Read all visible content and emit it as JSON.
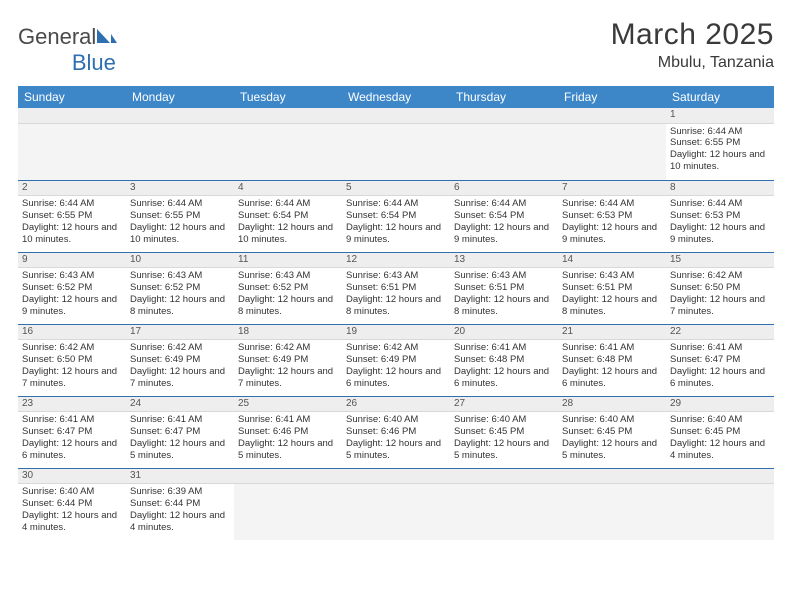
{
  "brand": {
    "name_a": "General",
    "name_b": "Blue"
  },
  "title": "March 2025",
  "location": "Mbulu, Tanzania",
  "colors": {
    "header_bg": "#3d87c9",
    "header_fg": "#ffffff",
    "rule": "#2f6fb0",
    "daynum_bg": "#eeeeee",
    "text": "#333333"
  },
  "weekdays": [
    "Sunday",
    "Monday",
    "Tuesday",
    "Wednesday",
    "Thursday",
    "Friday",
    "Saturday"
  ],
  "weeks": [
    [
      null,
      null,
      null,
      null,
      null,
      null,
      {
        "n": "1",
        "sr": "6:44 AM",
        "ss": "6:55 PM",
        "dl": "12 hours and 10 minutes."
      }
    ],
    [
      {
        "n": "2",
        "sr": "6:44 AM",
        "ss": "6:55 PM",
        "dl": "12 hours and 10 minutes."
      },
      {
        "n": "3",
        "sr": "6:44 AM",
        "ss": "6:55 PM",
        "dl": "12 hours and 10 minutes."
      },
      {
        "n": "4",
        "sr": "6:44 AM",
        "ss": "6:54 PM",
        "dl": "12 hours and 10 minutes."
      },
      {
        "n": "5",
        "sr": "6:44 AM",
        "ss": "6:54 PM",
        "dl": "12 hours and 9 minutes."
      },
      {
        "n": "6",
        "sr": "6:44 AM",
        "ss": "6:54 PM",
        "dl": "12 hours and 9 minutes."
      },
      {
        "n": "7",
        "sr": "6:44 AM",
        "ss": "6:53 PM",
        "dl": "12 hours and 9 minutes."
      },
      {
        "n": "8",
        "sr": "6:44 AM",
        "ss": "6:53 PM",
        "dl": "12 hours and 9 minutes."
      }
    ],
    [
      {
        "n": "9",
        "sr": "6:43 AM",
        "ss": "6:52 PM",
        "dl": "12 hours and 9 minutes."
      },
      {
        "n": "10",
        "sr": "6:43 AM",
        "ss": "6:52 PM",
        "dl": "12 hours and 8 minutes."
      },
      {
        "n": "11",
        "sr": "6:43 AM",
        "ss": "6:52 PM",
        "dl": "12 hours and 8 minutes."
      },
      {
        "n": "12",
        "sr": "6:43 AM",
        "ss": "6:51 PM",
        "dl": "12 hours and 8 minutes."
      },
      {
        "n": "13",
        "sr": "6:43 AM",
        "ss": "6:51 PM",
        "dl": "12 hours and 8 minutes."
      },
      {
        "n": "14",
        "sr": "6:43 AM",
        "ss": "6:51 PM",
        "dl": "12 hours and 8 minutes."
      },
      {
        "n": "15",
        "sr": "6:42 AM",
        "ss": "6:50 PM",
        "dl": "12 hours and 7 minutes."
      }
    ],
    [
      {
        "n": "16",
        "sr": "6:42 AM",
        "ss": "6:50 PM",
        "dl": "12 hours and 7 minutes."
      },
      {
        "n": "17",
        "sr": "6:42 AM",
        "ss": "6:49 PM",
        "dl": "12 hours and 7 minutes."
      },
      {
        "n": "18",
        "sr": "6:42 AM",
        "ss": "6:49 PM",
        "dl": "12 hours and 7 minutes."
      },
      {
        "n": "19",
        "sr": "6:42 AM",
        "ss": "6:49 PM",
        "dl": "12 hours and 6 minutes."
      },
      {
        "n": "20",
        "sr": "6:41 AM",
        "ss": "6:48 PM",
        "dl": "12 hours and 6 minutes."
      },
      {
        "n": "21",
        "sr": "6:41 AM",
        "ss": "6:48 PM",
        "dl": "12 hours and 6 minutes."
      },
      {
        "n": "22",
        "sr": "6:41 AM",
        "ss": "6:47 PM",
        "dl": "12 hours and 6 minutes."
      }
    ],
    [
      {
        "n": "23",
        "sr": "6:41 AM",
        "ss": "6:47 PM",
        "dl": "12 hours and 6 minutes."
      },
      {
        "n": "24",
        "sr": "6:41 AM",
        "ss": "6:47 PM",
        "dl": "12 hours and 5 minutes."
      },
      {
        "n": "25",
        "sr": "6:41 AM",
        "ss": "6:46 PM",
        "dl": "12 hours and 5 minutes."
      },
      {
        "n": "26",
        "sr": "6:40 AM",
        "ss": "6:46 PM",
        "dl": "12 hours and 5 minutes."
      },
      {
        "n": "27",
        "sr": "6:40 AM",
        "ss": "6:45 PM",
        "dl": "12 hours and 5 minutes."
      },
      {
        "n": "28",
        "sr": "6:40 AM",
        "ss": "6:45 PM",
        "dl": "12 hours and 5 minutes."
      },
      {
        "n": "29",
        "sr": "6:40 AM",
        "ss": "6:45 PM",
        "dl": "12 hours and 4 minutes."
      }
    ],
    [
      {
        "n": "30",
        "sr": "6:40 AM",
        "ss": "6:44 PM",
        "dl": "12 hours and 4 minutes."
      },
      {
        "n": "31",
        "sr": "6:39 AM",
        "ss": "6:44 PM",
        "dl": "12 hours and 4 minutes."
      },
      null,
      null,
      null,
      null,
      null
    ]
  ],
  "labels": {
    "sunrise": "Sunrise:",
    "sunset": "Sunset:",
    "daylight": "Daylight:"
  }
}
